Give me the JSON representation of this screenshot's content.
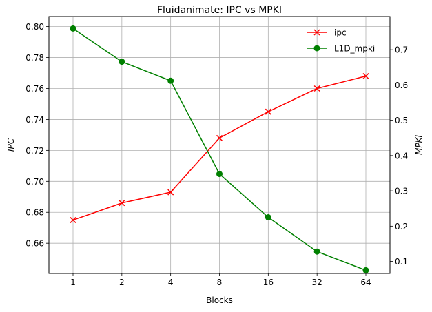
{
  "chart_data": {
    "type": "line",
    "title": "Fluidanimate: IPC vs MPKI",
    "xlabel": "Blocks",
    "ylabel_left": "IPC",
    "ylabel_right": "MPKI",
    "categories": [
      "1",
      "2",
      "4",
      "8",
      "16",
      "32",
      "64"
    ],
    "ylim_left": [
      0.6405,
      0.8065
    ],
    "ylim_right": [
      0.066,
      0.794
    ],
    "yticks_left": [
      "0.66",
      "0.68",
      "0.70",
      "0.72",
      "0.74",
      "0.76",
      "0.78",
      "0.80"
    ],
    "yticks_right": [
      "0.1",
      "0.2",
      "0.3",
      "0.4",
      "0.5",
      "0.6",
      "0.7"
    ],
    "grid": true,
    "legend_position": "top-right",
    "series": [
      {
        "name": "ipc",
        "axis": "left",
        "color": "#ff0000",
        "marker": "x",
        "values": [
          0.675,
          0.686,
          0.693,
          0.728,
          0.745,
          0.76,
          0.768
        ]
      },
      {
        "name": "L1D_mpki",
        "axis": "right",
        "color": "#008000",
        "marker": "circle",
        "values": [
          0.76,
          0.666,
          0.612,
          0.348,
          0.225,
          0.128,
          0.075
        ]
      }
    ]
  }
}
